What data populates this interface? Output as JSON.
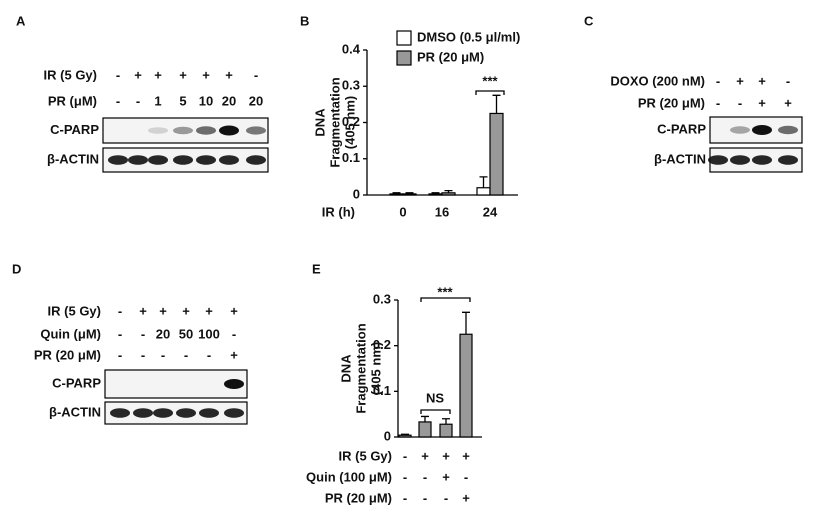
{
  "blots": [
    {
      "label": "A",
      "rows": [
        {
          "label": "IR (5 Gy)",
          "values": [
            "-",
            "+",
            "+",
            "+",
            "+",
            "+",
            "-"
          ]
        },
        {
          "label": "PR (μM)",
          "values": [
            "-",
            "-",
            "1",
            "5",
            "10",
            "20",
            "20"
          ]
        }
      ],
      "bands": [
        "C-PARP",
        "β-ACTIN"
      ]
    },
    {
      "label": "C",
      "rows": [
        {
          "label": "DOXO (200 nM)",
          "values": [
            "-",
            "+",
            "+",
            "-"
          ]
        },
        {
          "label": "PR (20 μM)",
          "values": [
            "-",
            "-",
            "+",
            "+"
          ]
        }
      ],
      "bands": [
        "C-PARP",
        "β-ACTIN"
      ]
    },
    {
      "label": "D",
      "rows": [
        {
          "label": "IR (5 Gy)",
          "values": [
            "-",
            "+",
            "+",
            "+",
            "+",
            "+"
          ]
        },
        {
          "label": "Quin (μM)",
          "values": [
            "-",
            "-",
            "20",
            "50",
            "100",
            "-"
          ]
        },
        {
          "label": "PR (20 μM)",
          "values": [
            "-",
            "-",
            "-",
            "-",
            "-",
            "+"
          ]
        }
      ],
      "bands": [
        "C-PARP",
        "β-ACTIN"
      ]
    }
  ],
  "chart_data": [
    {
      "type": "bar",
      "label": "B",
      "ylabel": [
        "DNA",
        "Fragmentation",
        "(405 nm)"
      ],
      "xlabel": "IR (h)",
      "categories": [
        "0",
        "16",
        "24"
      ],
      "series": [
        {
          "name": "DMSO (0.5 μl/ml)",
          "color": "#ffffff",
          "values": [
            0.003,
            0.003,
            0.02
          ],
          "errors": [
            0.003,
            0.003,
            0.03
          ]
        },
        {
          "name": "PR (20 μM)",
          "color": "#999999",
          "values": [
            0.003,
            0.006,
            0.225
          ],
          "errors": [
            0.003,
            0.006,
            0.05
          ]
        }
      ],
      "ylim": [
        0,
        0.4
      ],
      "yticks": [
        0,
        0.1,
        0.2,
        0.3,
        0.4
      ],
      "annotation": "***"
    },
    {
      "type": "bar",
      "label": "E",
      "ylabel": [
        "DNA",
        "Fragmentation",
        "(405 nm)"
      ],
      "categories": [
        null,
        null,
        null,
        null
      ],
      "treatments": [
        {
          "label": "IR (5 Gy)",
          "values": [
            "-",
            "+",
            "+",
            "+"
          ]
        },
        {
          "label": "Quin (100 μM)",
          "values": [
            "-",
            "-",
            "+",
            "-"
          ]
        },
        {
          "label": "PR (20 μM)",
          "values": [
            "-",
            "-",
            "-",
            "+"
          ]
        }
      ],
      "series": [
        {
          "color": "#999999",
          "values": [
            0.004,
            0.033,
            0.028,
            0.225
          ],
          "errors": [
            0.002,
            0.012,
            0.012,
            0.048
          ]
        }
      ],
      "ylim": [
        0,
        0.3
      ],
      "yticks": [
        0,
        0.1,
        0.2,
        0.3
      ],
      "annotations": [
        "NS",
        "***"
      ]
    }
  ]
}
